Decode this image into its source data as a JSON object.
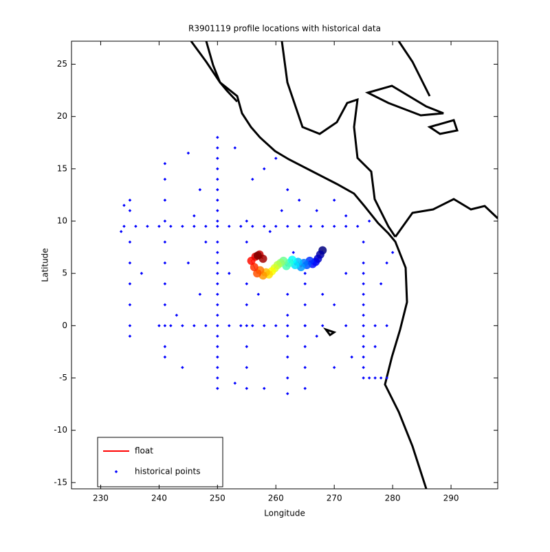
{
  "chart_data": {
    "type": "scatter",
    "title": "R3901119 profile locations with historical data",
    "x_label": "Longitude",
    "y_label": "Latitude",
    "xlim": [
      225,
      298
    ],
    "ylim": [
      -15.6,
      27.2
    ],
    "xticks": [
      230,
      240,
      250,
      260,
      270,
      280,
      290
    ],
    "yticks": [
      -15,
      -10,
      -5,
      0,
      5,
      10,
      15,
      20,
      25
    ],
    "legend": "lower left",
    "series": [
      {
        "name": "float",
        "color": "#ff0000",
        "x": [
          268,
          267.6,
          267.2,
          266.8,
          266.3,
          265.8,
          265.3,
          264.8,
          264.3,
          263.8,
          263.3,
          262.8,
          262.3,
          261.8,
          261.3,
          260.8,
          260.3,
          259.8,
          259.3,
          258.8,
          258.3,
          257.8,
          257.3,
          256.8,
          256.3,
          255.8,
          256.5,
          257.2,
          257.8,
          256.9
        ],
        "y": [
          7.2,
          6.8,
          6.4,
          6.1,
          5.9,
          6.2,
          5.8,
          6.0,
          5.6,
          6.1,
          5.8,
          6.3,
          6.0,
          5.7,
          6.2,
          6.0,
          5.8,
          5.5,
          5.2,
          4.9,
          5.1,
          4.8,
          5.3,
          5.0,
          5.6,
          6.2,
          6.6,
          6.8,
          6.4,
          6.7
        ]
      },
      {
        "name": "historical points",
        "color": "#0000ff",
        "x": [
          234,
          236,
          238,
          240,
          242,
          244,
          246,
          248,
          250,
          252,
          254,
          256,
          258,
          260,
          262,
          264,
          266,
          268,
          270,
          272,
          274,
          250,
          250,
          250,
          250,
          250,
          250,
          250,
          250,
          250,
          250,
          250,
          250,
          250,
          250,
          250,
          250,
          250,
          250,
          250,
          250,
          250,
          250,
          250,
          250,
          275,
          275,
          275,
          275,
          275,
          275,
          275,
          275,
          275,
          275,
          275,
          275,
          275,
          240,
          242,
          244,
          246,
          248,
          252,
          254,
          256,
          258,
          260,
          262,
          265,
          268,
          272,
          277,
          279,
          276,
          277,
          278,
          279,
          265,
          265,
          265,
          265,
          265,
          265,
          265,
          262,
          262,
          262,
          262,
          262,
          262,
          255,
          255,
          255,
          255,
          255,
          255,
          255,
          255,
          241,
          241,
          241,
          241,
          241,
          241,
          241,
          241,
          241,
          241,
          241,
          235,
          235,
          235,
          235,
          235,
          235,
          235,
          235,
          245,
          247,
          253,
          256,
          258,
          260,
          262,
          264,
          267,
          270,
          272,
          245,
          247,
          252,
          257,
          268,
          270,
          272,
          278,
          279,
          280,
          277,
          244,
          253,
          258,
          270,
          237,
          243,
          233.5,
          234,
          276,
          273,
          267,
          259,
          261,
          263,
          246,
          248
        ],
        "y": [
          9.5,
          9.5,
          9.5,
          9.5,
          9.5,
          9.5,
          9.5,
          9.5,
          9.5,
          9.5,
          9.5,
          9.5,
          9.5,
          9.5,
          9.5,
          9.5,
          9.5,
          9.5,
          9.5,
          9.5,
          9.5,
          18,
          17,
          16,
          15,
          14,
          13,
          12,
          11,
          10,
          8,
          7,
          6,
          5,
          4,
          3,
          2,
          1,
          0,
          -1,
          -2,
          -3,
          -4,
          -5,
          -6,
          8,
          6,
          5,
          4,
          3,
          2,
          1,
          0,
          -1,
          -2,
          -3,
          -4,
          -5,
          0,
          0,
          0,
          0,
          0,
          0,
          0,
          0,
          0,
          0,
          0,
          0,
          0,
          0,
          0,
          0,
          -5,
          -5,
          -5,
          -5,
          5,
          4,
          2,
          0,
          -2,
          -4,
          -6,
          3,
          1,
          -1,
          -3,
          -5,
          -6.5,
          10,
          8,
          4,
          2,
          0,
          -2,
          -4,
          -6,
          15.5,
          14,
          12,
          10,
          8,
          6,
          4,
          2,
          0,
          -2,
          -3,
          12,
          11,
          8,
          6,
          4,
          2,
          0,
          -1,
          16.5,
          13,
          17,
          14,
          15,
          16,
          13,
          12,
          11,
          12,
          10.5,
          6,
          3,
          5,
          3,
          3,
          2,
          5,
          4,
          6,
          7,
          -2,
          -4,
          -5.5,
          -6,
          -4,
          5,
          1,
          9,
          11.5,
          10,
          -3,
          -1,
          9,
          11,
          7,
          10.5,
          8
        ]
      }
    ]
  }
}
